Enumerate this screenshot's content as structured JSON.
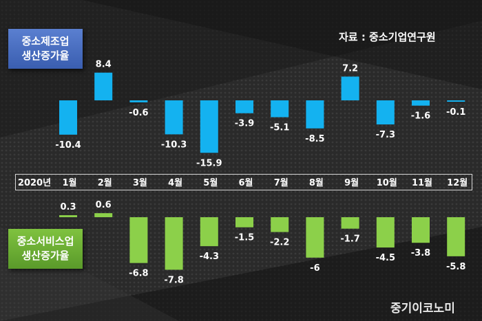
{
  "chart_data": {
    "type": "bar",
    "categories": [
      "1월",
      "2월",
      "3월",
      "4월",
      "5월",
      "6월",
      "7월",
      "8월",
      "9월",
      "10월",
      "11월",
      "12월"
    ],
    "year_label": "2020년",
    "source": "자료 : 중소기업연구원",
    "series": [
      {
        "name": "중소제조업 생산증가율",
        "name_lines": [
          "중소제조업",
          "생산증가율"
        ],
        "color": "#14b2f0",
        "values": [
          -10.4,
          8.4,
          -0.6,
          -10.3,
          -15.9,
          -3.9,
          -5.1,
          -8.5,
          7.2,
          -7.3,
          -1.6,
          -0.1
        ]
      },
      {
        "name": "중소서비스업 생산증가율",
        "name_lines": [
          "중소서비스업",
          "생산증가율"
        ],
        "color": "#8cd04a",
        "values": [
          0.3,
          0.6,
          -6.8,
          -7.8,
          -4.3,
          -1.5,
          -2.2,
          -6,
          -1.7,
          -4.5,
          -3.8,
          -5.8
        ]
      }
    ]
  },
  "brand": "중기이코노미"
}
